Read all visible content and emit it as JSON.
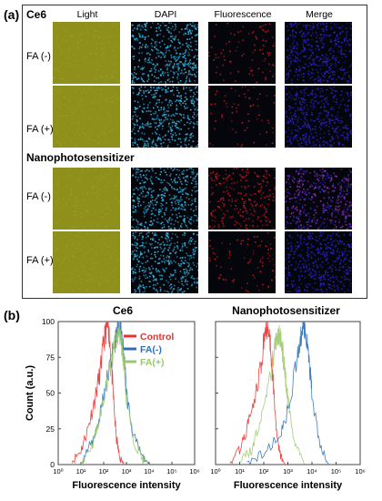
{
  "figure": {
    "panel_a_label": "(a)",
    "panel_b_label": "(b)",
    "column_headers": [
      "Light",
      "DAPI",
      "Fluorescence",
      "Merge"
    ],
    "groups": [
      {
        "title": "Ce6",
        "rows": [
          "FA (-)",
          "FA (+)"
        ]
      },
      {
        "title": "Nanophotosensitizer",
        "rows": [
          "FA (-)",
          "FA (+)"
        ]
      }
    ],
    "tile_colors": {
      "light": "#8f8f1c",
      "dapi": "#34b6e0",
      "fluorescence": "#c8161b",
      "merge": "#2b21c8"
    }
  },
  "chart_data": [
    {
      "type": "line",
      "title": "Ce6",
      "xlabel": "Fluorescence intensity",
      "ylabel": "Count (a.u.)",
      "x_scale": "log",
      "xlim": [
        1,
        1000000
      ],
      "ylim": [
        0,
        100
      ],
      "x_ticks": [
        "10⁰",
        "10¹",
        "10²",
        "10³",
        "10⁴",
        "10⁵",
        "10⁶"
      ],
      "y_ticks": [
        "0",
        "25",
        "50",
        "75",
        "100"
      ],
      "legend": {
        "placement": "top-right",
        "entries": [
          "Control",
          "FA(-)",
          "FA(+)"
        ]
      },
      "series": [
        {
          "name": "Control",
          "color": "#e8312f",
          "x": [
            4,
            10,
            20,
            40,
            70,
            100,
            130,
            160,
            200,
            260,
            350,
            500,
            800
          ],
          "y": [
            2,
            10,
            25,
            45,
            65,
            85,
            95,
            98,
            80,
            50,
            20,
            5,
            0
          ]
        },
        {
          "name": "FA(-)",
          "color": "#2e6fb5",
          "x": [
            10,
            30,
            60,
            100,
            200,
            300,
            400,
            500,
            600,
            800,
            1000,
            2000,
            5000,
            10000
          ],
          "y": [
            2,
            15,
            30,
            50,
            70,
            85,
            95,
            98,
            90,
            75,
            50,
            20,
            5,
            0
          ]
        },
        {
          "name": "FA(+)",
          "color": "#9bc96a",
          "x": [
            10,
            30,
            60,
            100,
            200,
            300,
            400,
            500,
            600,
            800,
            1000,
            2000,
            5000,
            10000
          ],
          "y": [
            2,
            13,
            28,
            48,
            68,
            82,
            90,
            92,
            85,
            70,
            45,
            18,
            4,
            0
          ]
        }
      ]
    },
    {
      "type": "line",
      "title": "Nanophotosensitizer",
      "xlabel": "Fluorescence intensity",
      "ylabel": "",
      "x_scale": "log",
      "xlim": [
        1,
        1000000
      ],
      "ylim": [
        0,
        100
      ],
      "x_ticks": [
        "10⁰",
        "10¹",
        "10²",
        "10³",
        "10⁴",
        "10⁵",
        "10⁶"
      ],
      "series": [
        {
          "name": "Control",
          "color": "#e8312f",
          "x": [
            4,
            10,
            20,
            40,
            70,
            100,
            130,
            160,
            200,
            260,
            350,
            500,
            800
          ],
          "y": [
            2,
            10,
            25,
            45,
            65,
            85,
            95,
            98,
            80,
            50,
            20,
            5,
            0
          ]
        },
        {
          "name": "FA(-)",
          "color": "#2e6fb5",
          "x": [
            20,
            100,
            500,
            1000,
            2000,
            3000,
            4000,
            5000,
            6000,
            8000,
            10000,
            20000,
            50000
          ],
          "y": [
            2,
            8,
            20,
            40,
            65,
            85,
            95,
            98,
            90,
            70,
            50,
            15,
            0
          ]
        },
        {
          "name": "FA(+)",
          "color": "#9bc96a",
          "x": [
            10,
            30,
            60,
            100,
            200,
            300,
            400,
            500,
            600,
            800,
            1000,
            2000,
            5000
          ],
          "y": [
            2,
            10,
            25,
            45,
            65,
            85,
            92,
            88,
            80,
            60,
            45,
            15,
            0
          ]
        }
      ]
    }
  ]
}
